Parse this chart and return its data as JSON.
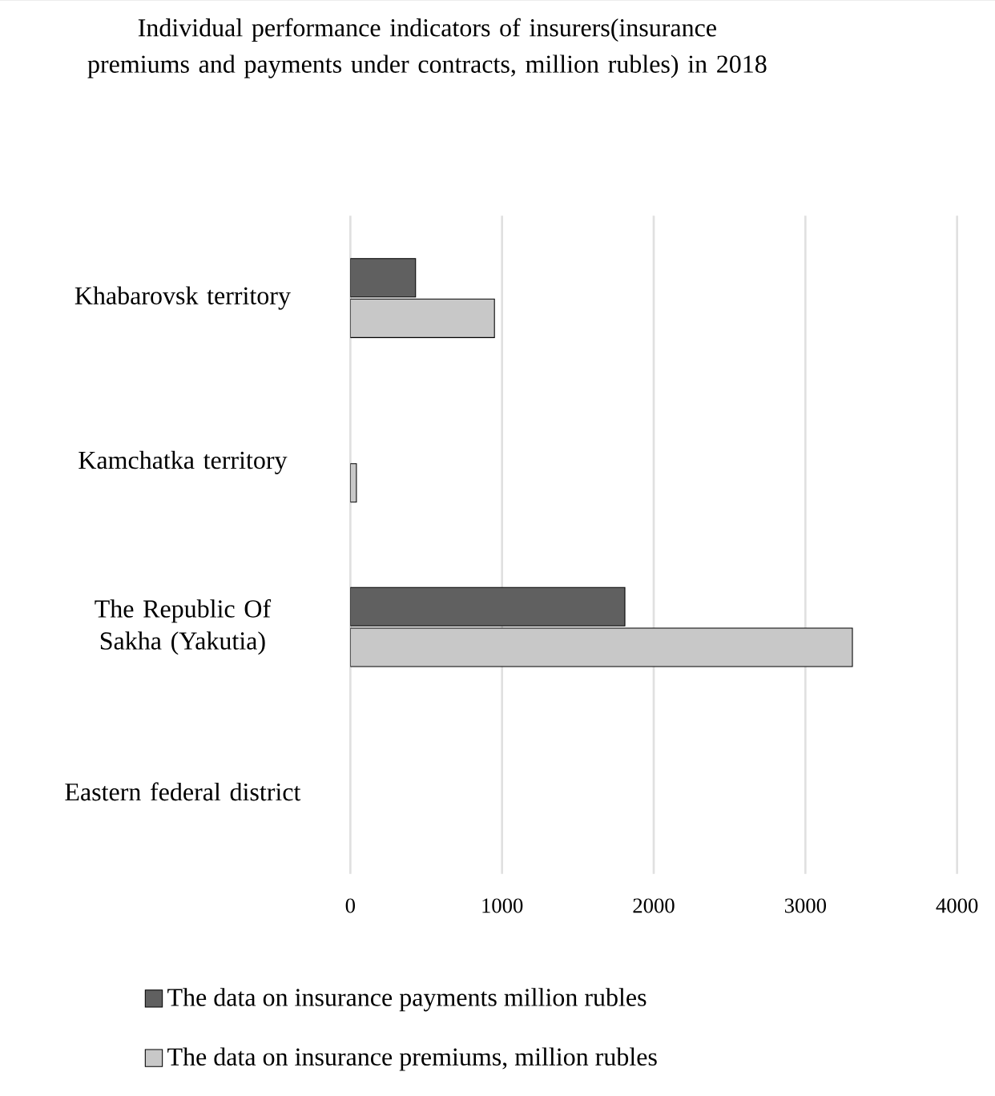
{
  "chart_data": {
    "type": "bar",
    "orientation": "horizontal",
    "title": "Individual performance indicators of insurers(insurance premiums and payments under contracts, million rubles) in 2018",
    "categories": [
      "Khabarovsk territory",
      "Kamchatka territory",
      "The Republic Of Sakha (Yakutia)",
      "Eastern federal district"
    ],
    "series": [
      {
        "name": "The data on insurance payments million rubles",
        "color": "#606060",
        "values": [
          430,
          null,
          1810,
          null
        ]
      },
      {
        "name": "The data on insurance premiums,  million rubles",
        "color": "#c8c8c8",
        "values": [
          950,
          40,
          3310,
          null
        ]
      }
    ],
    "xlim": [
      0,
      4000
    ],
    "xticks": [
      0,
      1000,
      2000,
      3000,
      4000
    ],
    "grid": "x",
    "legend": "bottom"
  }
}
